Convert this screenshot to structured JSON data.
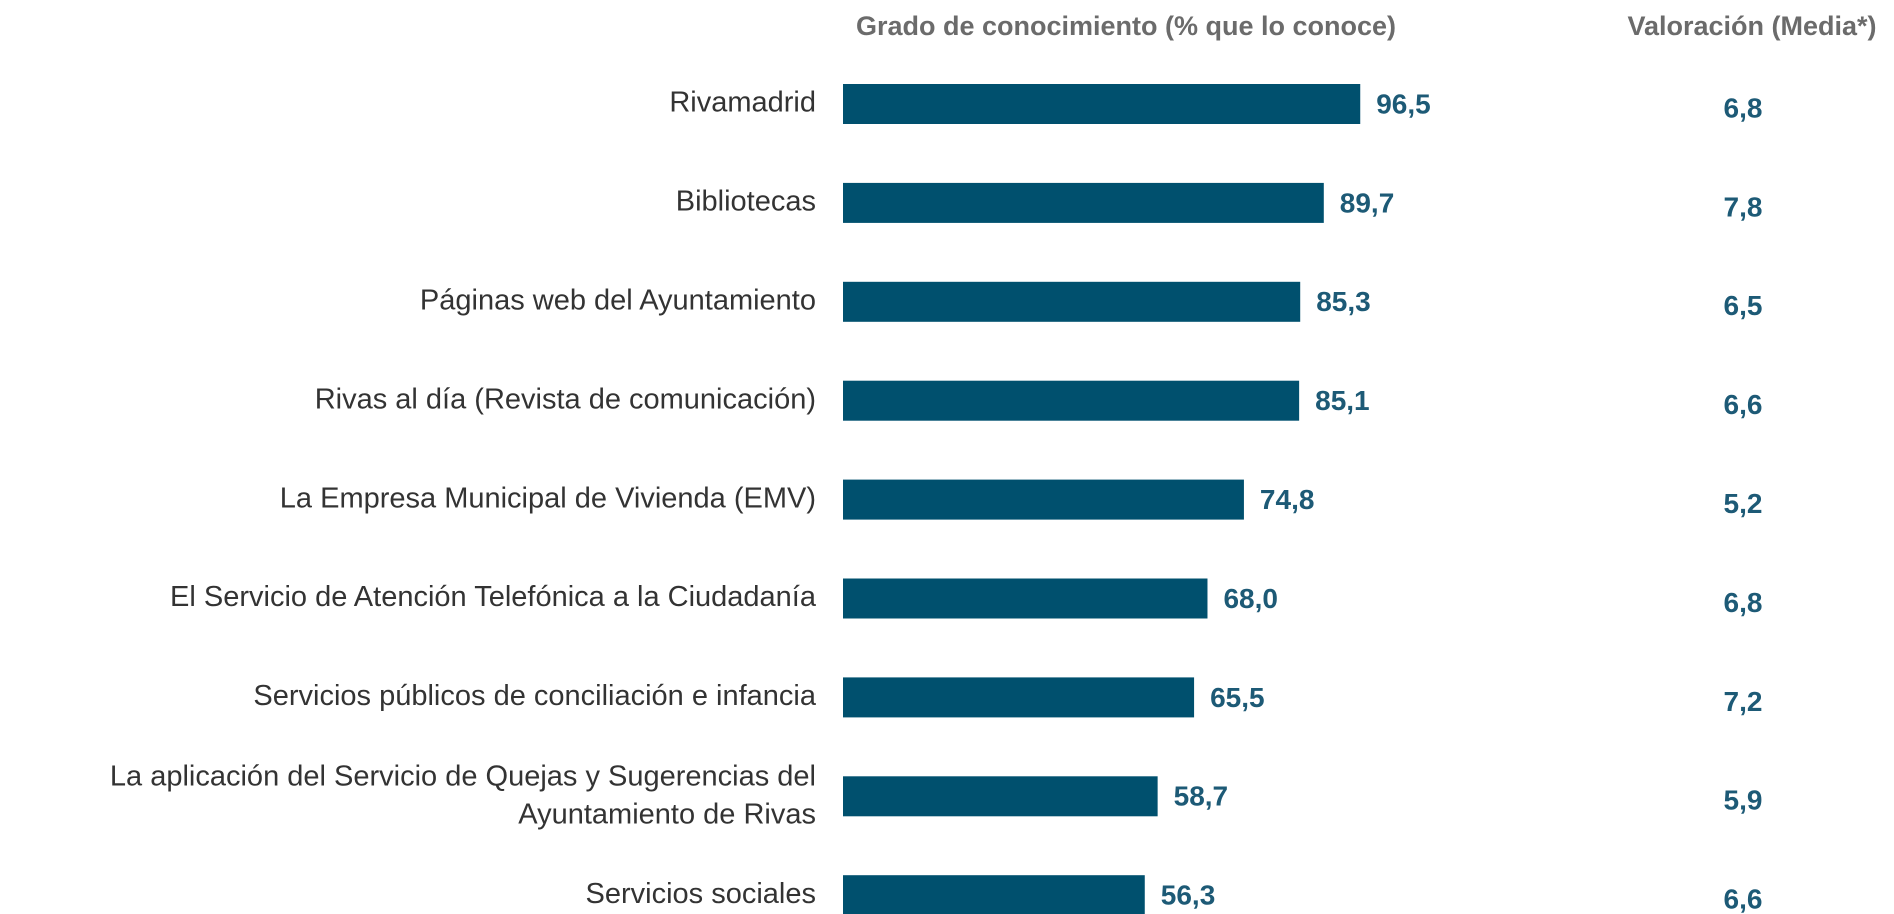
{
  "chart_data": {
    "type": "bar",
    "orientation": "horizontal",
    "title": "Grado de conocimiento (% que lo conoce)",
    "rating_title": "Valoración (Media*)",
    "categories": [
      "Rivamadrid",
      "Bibliotecas",
      "Páginas web del Ayuntamiento",
      "Rivas al día (Revista de comunicación)",
      "La Empresa Municipal de Vivienda (EMV)",
      "El Servicio de Atención Telefónica a la Ciudadanía",
      "Servicios públicos de conciliación e infancia",
      "La aplicación del Servicio de Quejas y Sugerencias del Ayuntamiento de Rivas",
      "Servicios sociales"
    ],
    "values": [
      96.5,
      89.7,
      85.3,
      85.1,
      74.8,
      68.0,
      65.5,
      58.7,
      56.3
    ],
    "value_labels": [
      "96,5",
      "89,7",
      "85,3",
      "85,1",
      "74,8",
      "68,0",
      "65,5",
      "58,7",
      "56,3"
    ],
    "ratings": [
      6.8,
      7.8,
      6.5,
      6.6,
      5.2,
      6.8,
      7.2,
      5.9,
      6.6
    ],
    "rating_labels": [
      "6,8",
      "7,8",
      "6,5",
      "6,6",
      "5,2",
      "6,8",
      "7,2",
      "5,9",
      "6,6"
    ],
    "color": "#00506e",
    "xlim": [
      0,
      100
    ]
  }
}
